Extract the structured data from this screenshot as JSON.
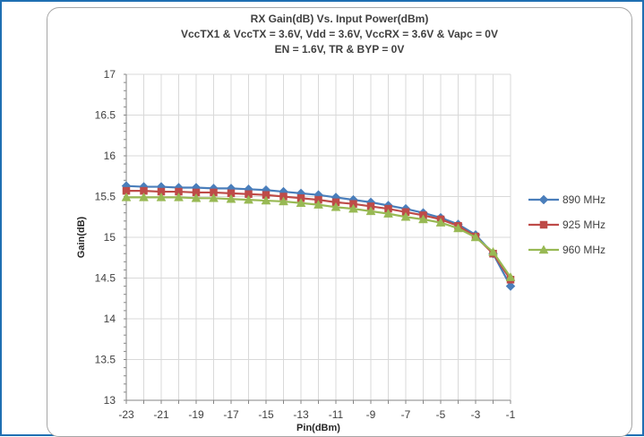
{
  "chart_data": {
    "type": "line",
    "title_lines": [
      "RX Gain(dB) Vs. Input Power(dBm)",
      "VccTX1 & VccTX = 3.6V, Vdd = 3.6V, VccRX  = 3.6V & Vapc = 0V",
      "EN = 1.6V, TR & BYP = 0V"
    ],
    "xlabel": "Pin(dBm)",
    "ylabel": "Gain(dB)",
    "xlim": [
      -23,
      -1
    ],
    "ylim": [
      13,
      17
    ],
    "x_ticks": [
      "-23",
      "-21",
      "-19",
      "-17",
      "-15",
      "-13",
      "-11",
      "-9",
      "-7",
      "-5",
      "-3",
      "-1"
    ],
    "y_ticks": [
      "13",
      "13.5",
      "14",
      "14.5",
      "15",
      "15.5",
      "16",
      "16.5",
      "17"
    ],
    "grid": true,
    "legend_position": "right",
    "x": [
      -23,
      -22,
      -21,
      -20,
      -19,
      -18,
      -17,
      -16,
      -15,
      -14,
      -13,
      -12,
      -11,
      -10,
      -9,
      -8,
      -7,
      -6,
      -5,
      -4,
      -3,
      -2,
      -1
    ],
    "series": [
      {
        "name": "890 MHz",
        "color": "#4a7ebb",
        "marker": "diamond",
        "values": [
          15.63,
          15.62,
          15.62,
          15.61,
          15.61,
          15.6,
          15.6,
          15.59,
          15.58,
          15.56,
          15.54,
          15.52,
          15.49,
          15.46,
          15.43,
          15.39,
          15.35,
          15.3,
          15.24,
          15.16,
          15.03,
          14.8,
          14.4
        ]
      },
      {
        "name": "925 MHz",
        "color": "#be4b48",
        "marker": "square",
        "values": [
          15.57,
          15.57,
          15.56,
          15.56,
          15.55,
          15.55,
          15.54,
          15.53,
          15.52,
          15.5,
          15.48,
          15.46,
          15.43,
          15.41,
          15.38,
          15.35,
          15.31,
          15.27,
          15.22,
          15.14,
          15.01,
          14.8,
          14.48
        ]
      },
      {
        "name": "960 MHz",
        "color": "#98b954",
        "marker": "triangle",
        "values": [
          15.49,
          15.49,
          15.49,
          15.49,
          15.48,
          15.48,
          15.47,
          15.46,
          15.45,
          15.44,
          15.42,
          15.4,
          15.37,
          15.35,
          15.32,
          15.29,
          15.25,
          15.22,
          15.18,
          15.11,
          15.0,
          14.82,
          14.51
        ]
      }
    ]
  }
}
